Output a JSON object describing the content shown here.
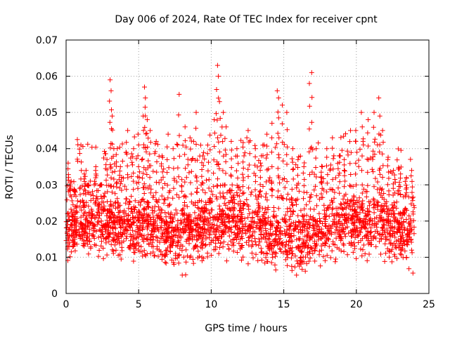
{
  "chart_data": {
    "type": "scatter",
    "title": "Day 006 of 2024, Rate Of TEC Index for receiver cpnt",
    "xlabel": "GPS time / hours",
    "ylabel": "ROTI / TECUs",
    "xlim": [
      0,
      25
    ],
    "ylim": [
      0,
      0.07
    ],
    "grid": true,
    "marker": "+",
    "marker_color": "#ff0000",
    "x_ticks": [
      "0",
      "5",
      "10",
      "15",
      "20",
      "25"
    ],
    "y_ticks": [
      "0",
      "0.01",
      "0.02",
      "0.03",
      "0.04",
      "0.05",
      "0.06",
      "0.07"
    ],
    "x_tick_values": [
      0,
      5,
      10,
      15,
      20,
      25
    ],
    "y_tick_values": [
      0,
      0.01,
      0.02,
      0.03,
      0.04,
      0.05,
      0.06,
      0.07
    ],
    "series": [
      {
        "name": "ROTI",
        "x": [
          0.1,
          0.3,
          0.6,
          1.0,
          1.3,
          1.5,
          2.0,
          2.4,
          2.8,
          3.05,
          3.1,
          3.15,
          3.3,
          3.7,
          4.2,
          4.6,
          5.0,
          5.3,
          5.4,
          5.5,
          5.6,
          5.8,
          6.2,
          6.6,
          7.0,
          7.4,
          7.8,
          8.2,
          8.6,
          9.0,
          9.4,
          9.8,
          10.2,
          10.4,
          10.45,
          10.6,
          10.8,
          11.0,
          11.4,
          11.8,
          12.2,
          12.6,
          13.0,
          13.4,
          13.8,
          14.2,
          14.6,
          14.7,
          14.9,
          15.2,
          15.6,
          16.0,
          16.4,
          16.8,
          16.9,
          17.2,
          17.6,
          18.0,
          18.4,
          18.8,
          19.2,
          19.6,
          20.0,
          20.4,
          20.8,
          21.2,
          21.6,
          21.8,
          22.2,
          22.6,
          23.0,
          23.4,
          23.8
        ],
        "y": [
          0.036,
          0.031,
          0.028,
          0.041,
          0.033,
          0.03,
          0.035,
          0.03,
          0.037,
          0.059,
          0.056,
          0.049,
          0.04,
          0.035,
          0.045,
          0.04,
          0.044,
          0.049,
          0.057,
          0.054,
          0.048,
          0.045,
          0.042,
          0.038,
          0.044,
          0.04,
          0.055,
          0.046,
          0.043,
          0.05,
          0.038,
          0.041,
          0.048,
          0.063,
          0.06,
          0.053,
          0.05,
          0.046,
          0.042,
          0.04,
          0.038,
          0.045,
          0.04,
          0.038,
          0.044,
          0.047,
          0.056,
          0.054,
          0.052,
          0.05,
          0.04,
          0.037,
          0.035,
          0.058,
          0.061,
          0.04,
          0.035,
          0.04,
          0.043,
          0.038,
          0.037,
          0.045,
          0.045,
          0.05,
          0.048,
          0.05,
          0.054,
          0.045,
          0.037,
          0.034,
          0.033,
          0.032,
          0.034
        ]
      }
    ]
  }
}
